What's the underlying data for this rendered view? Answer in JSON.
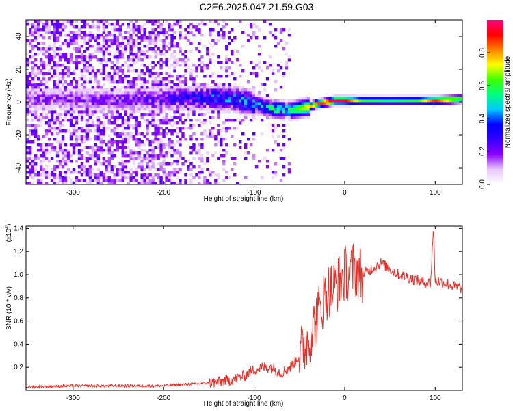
{
  "page_title": "C2E6.2025.047.21.59.G03",
  "chart_data": [
    {
      "type": "heatmap",
      "title": "C2E6.2025.047.21.59.G03",
      "xlabel": "Height of straight line (km)",
      "ylabel": "Frequency (Hz)",
      "xlim": [
        -352,
        130
      ],
      "ylim": [
        -50,
        50
      ],
      "x_ticks": [
        -300,
        -200,
        -100,
        0,
        100
      ],
      "x_tick_labels": [
        "-300",
        "-200",
        "-100",
        "0",
        "100"
      ],
      "y_ticks": [
        -40,
        -20,
        0,
        20,
        40
      ],
      "y_tick_labels": [
        "-40",
        "-20",
        "0",
        "20",
        "40"
      ],
      "grid": false,
      "colormap": [
        "#ffffff",
        "#e8c8ff",
        "#8a00ff",
        "#3300ff",
        "#0000ff",
        "#00c8ff",
        "#00ff80",
        "#40ff00",
        "#ffff00",
        "#ff8000",
        "#ff0000",
        "#ff0080"
      ],
      "colorbar": {
        "label": "Normalized spectral amplitude",
        "range": [
          0,
          1
        ],
        "ticks": [
          0.0,
          0.2,
          0.4,
          0.6,
          0.8
        ],
        "tick_labels": [
          "0.0",
          "0.2",
          "0.4",
          "0.6",
          "0.8"
        ]
      },
      "ridge_frequency": {
        "x": [
          -352,
          -300,
          -250,
          -200,
          -150,
          -120,
          -100,
          -80,
          -60,
          -50,
          -40,
          -30,
          -20,
          -10,
          0,
          20,
          50,
          80,
          100,
          130
        ],
        "y": [
          2,
          2,
          1,
          2,
          3,
          2,
          -1,
          -4,
          -5,
          -4,
          -3,
          -1,
          0,
          1,
          1,
          1,
          1,
          1,
          1,
          2
        ]
      },
      "ridge_peak_amplitude": {
        "x": [
          -352,
          -300,
          -250,
          -200,
          -150,
          -120,
          -100,
          -80,
          -60,
          -50,
          -40,
          -30,
          -20,
          -10,
          0,
          20,
          50,
          80,
          100,
          130
        ],
        "y": [
          0.18,
          0.18,
          0.2,
          0.25,
          0.35,
          0.4,
          0.45,
          0.5,
          0.55,
          0.65,
          0.75,
          0.85,
          0.95,
          0.98,
          0.95,
          0.6,
          0.55,
          0.6,
          0.9,
          0.65
        ]
      }
    },
    {
      "type": "line",
      "title": "",
      "xlabel": "Height of straight line (km)",
      "ylabel": "SNR (10 * v/v)",
      "y_multiplier": "(x10^4)",
      "y_multiplier_base": "(x10",
      "y_multiplier_exp": "4",
      "y_multiplier_close": ")",
      "xlim": [
        -352,
        130
      ],
      "ylim": [
        0,
        1.42
      ],
      "x_ticks": [
        -300,
        -200,
        -100,
        0,
        100
      ],
      "x_tick_labels": [
        "-300",
        "-200",
        "-100",
        "0",
        "100"
      ],
      "y_ticks": [
        0.2,
        0.4,
        0.6,
        0.8,
        1.0,
        1.2,
        1.4
      ],
      "y_tick_labels": [
        "0.2",
        "0.4",
        "0.6",
        "0.8",
        "1.0",
        "1.2",
        "1.4"
      ],
      "grid": false,
      "line_color": "#e8302a",
      "series": [
        {
          "x": [
            -352,
            -300,
            -250,
            -200,
            -180,
            -160,
            -140,
            -120,
            -110,
            -100,
            -90,
            -80,
            -70,
            -60,
            -50,
            -40,
            -30,
            -20,
            -10,
            0,
            10,
            20,
            30,
            40,
            50,
            60,
            70,
            80,
            90,
            95,
            98,
            100,
            110,
            120,
            130
          ],
          "y": [
            0.03,
            0.04,
            0.04,
            0.04,
            0.05,
            0.06,
            0.07,
            0.1,
            0.13,
            0.18,
            0.2,
            0.2,
            0.15,
            0.2,
            0.3,
            0.45,
            0.65,
            0.85,
            0.9,
            1.0,
            1.05,
            1.0,
            1.05,
            1.1,
            1.05,
            1.0,
            0.98,
            0.95,
            0.93,
            0.93,
            1.42,
            0.95,
            0.93,
            0.9,
            0.88
          ]
        }
      ]
    }
  ]
}
